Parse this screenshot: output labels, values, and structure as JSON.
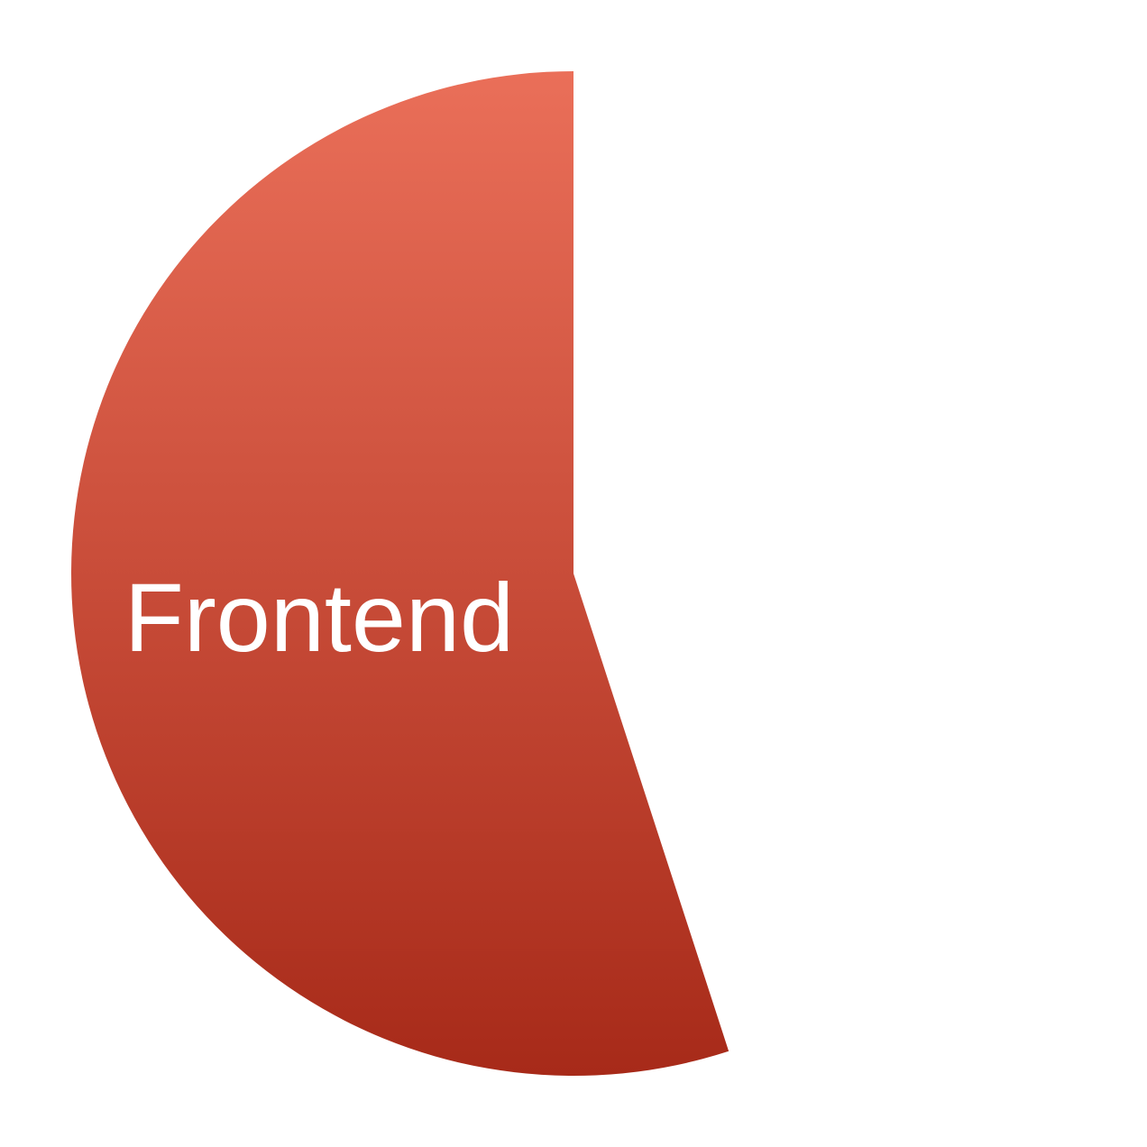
{
  "chart_data": {
    "type": "pie",
    "slices": [
      {
        "label": "Frontend",
        "value": 55,
        "color_top": "#ea6f59",
        "color_bottom": "#a72a19"
      }
    ],
    "start_angle": "top",
    "direction": "counter-clockwise",
    "legend": "none",
    "title": ""
  }
}
